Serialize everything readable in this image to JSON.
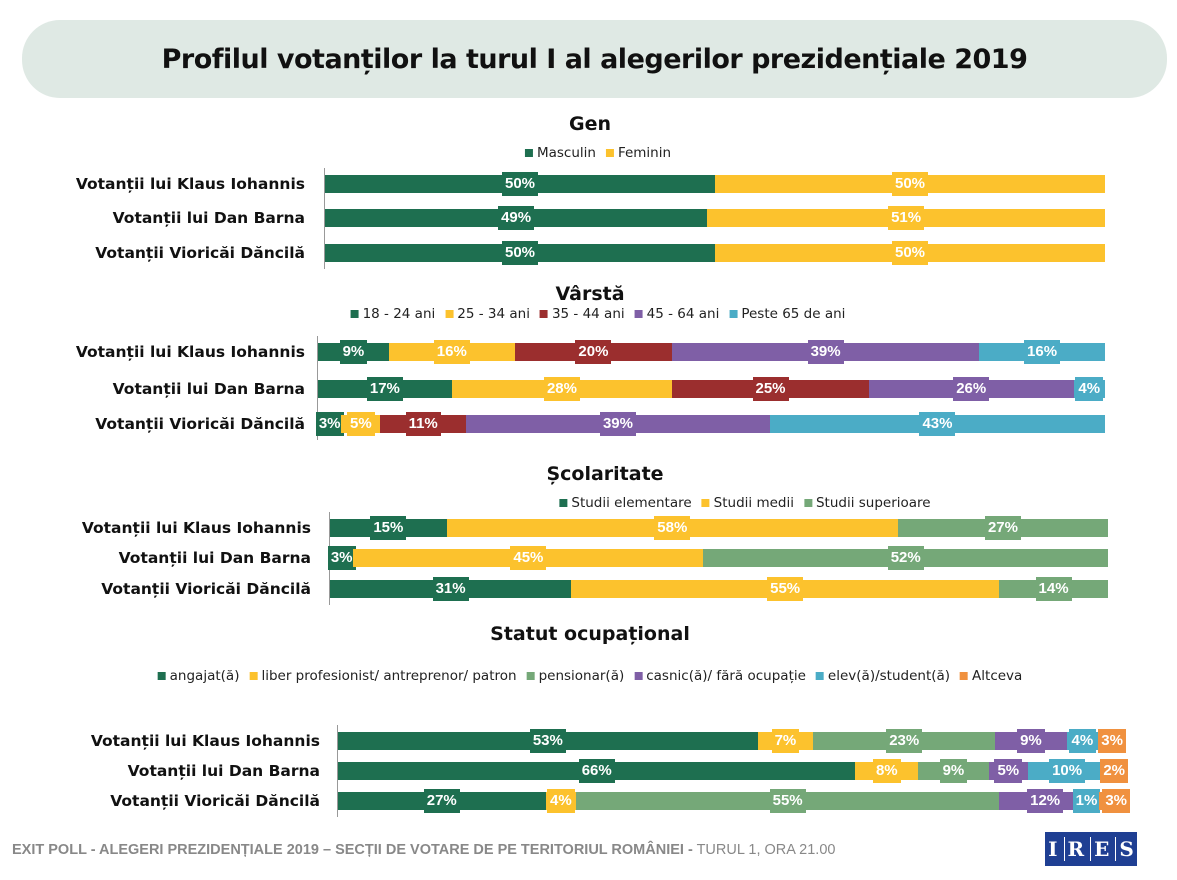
{
  "title": "Profilul votanților la turul I al alegerilor prezidențiale 2019",
  "footer": {
    "bold": "EXIT POLL - ALEGERI PREZIDENȚIALE 2019 –  SECȚII DE VOTARE DE PE TERITORIUL ROMÂNIEI -",
    "normal": " TURUL 1, ORA 21.00"
  },
  "logo": "IRES",
  "chart_data": [
    {
      "type": "bar",
      "stacked": true,
      "orientation": "horizontal",
      "title": "Gen",
      "categories": [
        "Votanții lui Klaus Iohannis",
        "Votanții lui Dan Barna",
        "Votanții Vioricăi Dăncilă"
      ],
      "series": [
        {
          "name": "Masculin",
          "color": "#1e6f50",
          "values": [
            50,
            49,
            50
          ]
        },
        {
          "name": "Feminin",
          "color": "#fcc22d",
          "values": [
            50,
            51,
            50
          ]
        }
      ],
      "legend": "top"
    },
    {
      "type": "bar",
      "stacked": true,
      "orientation": "horizontal",
      "title": "Vârstă",
      "categories": [
        "Votanții lui Klaus Iohannis",
        "Votanții lui Dan Barna",
        "Votanții Vioricăi Dăncilă"
      ],
      "series": [
        {
          "name": "18 - 24 ani",
          "color": "#1e6f50",
          "values": [
            9,
            17,
            3
          ]
        },
        {
          "name": "25 - 34 ani",
          "color": "#fcc22d",
          "values": [
            16,
            28,
            5
          ]
        },
        {
          "name": "35 - 44 ani",
          "color": "#9b2e2e",
          "values": [
            20,
            25,
            11
          ]
        },
        {
          "name": "45 - 64 ani",
          "color": "#7f5fa6",
          "values": [
            39,
            26,
            39
          ]
        },
        {
          "name": "Peste 65 de ani",
          "color": "#4bacc6",
          "values": [
            16,
            4,
            43
          ]
        }
      ],
      "legend": "top"
    },
    {
      "type": "bar",
      "stacked": true,
      "orientation": "horizontal",
      "title": "Școlaritate",
      "categories": [
        "Votanții lui Klaus Iohannis",
        "Votanții lui Dan Barna",
        "Votanții Vioricăi Dăncilă"
      ],
      "series": [
        {
          "name": "Studii elementare",
          "color": "#1e6f50",
          "values": [
            15,
            3,
            31
          ]
        },
        {
          "name": "Studii medii",
          "color": "#fcc22d",
          "values": [
            58,
            45,
            55
          ]
        },
        {
          "name": "Studii superioare",
          "color": "#75a878",
          "values": [
            27,
            52,
            14
          ]
        }
      ],
      "legend": "top"
    },
    {
      "type": "bar",
      "stacked": true,
      "orientation": "horizontal",
      "title": "Statut ocupațional",
      "categories": [
        "Votanții lui Klaus Iohannis",
        "Votanții lui Dan Barna",
        "Votanții Vioricăi Dăncilă"
      ],
      "series": [
        {
          "name": "angajat(ă)",
          "color": "#1e6f50",
          "values": [
            53,
            66,
            27
          ]
        },
        {
          "name": "liber profesionist/ antreprenor/ patron",
          "color": "#fcc22d",
          "values": [
            7,
            8,
            4
          ]
        },
        {
          "name": "pensionar(ă)",
          "color": "#75a878",
          "values": [
            23,
            9,
            55
          ]
        },
        {
          "name": "casnic(ă)/ fără ocupație",
          "color": "#7f5fa6",
          "values": [
            9,
            5,
            12
          ]
        },
        {
          "name": "elev(ă)/student(ă)",
          "color": "#4bacc6",
          "values": [
            4,
            10,
            1
          ]
        },
        {
          "name": "Altceva",
          "color": "#f0913f",
          "values": [
            3,
            2,
            3
          ]
        }
      ],
      "legend": "top"
    }
  ]
}
